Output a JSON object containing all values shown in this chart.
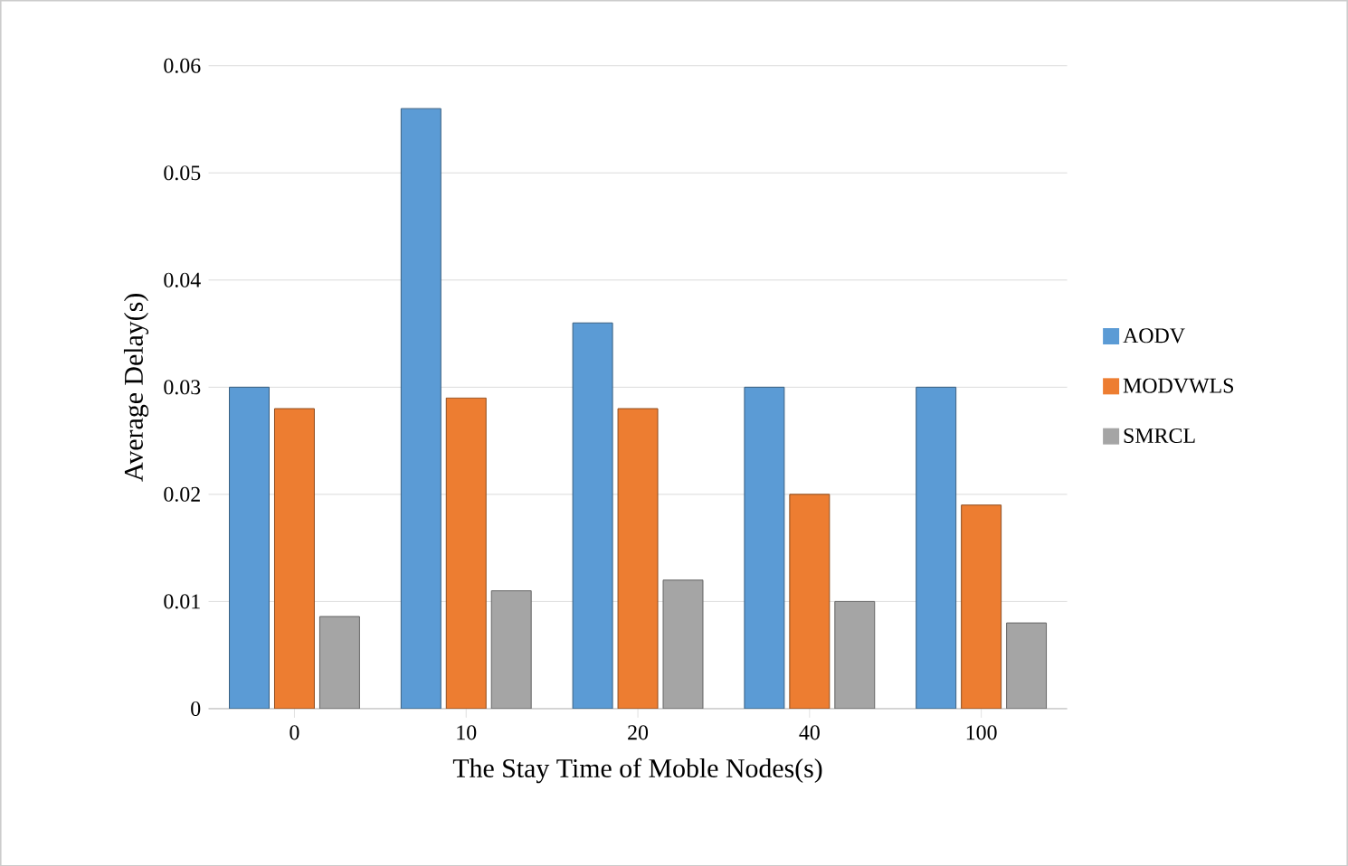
{
  "chart_data": {
    "type": "bar",
    "xlabel": "The Stay Time of Moble Nodes(s)",
    "ylabel": "Average Delay(s)",
    "categories": [
      "0",
      "10",
      "20",
      "40",
      "100"
    ],
    "series": [
      {
        "name": "AODV",
        "color": "#5b9bd5",
        "values": [
          0.03,
          0.056,
          0.036,
          0.03,
          0.03
        ]
      },
      {
        "name": "MODVWLS",
        "color": "#ed7d31",
        "values": [
          0.028,
          0.029,
          0.028,
          0.02,
          0.019
        ]
      },
      {
        "name": "SMRCL",
        "color": "#a5a5a5",
        "values": [
          0.0086,
          0.011,
          0.012,
          0.01,
          0.008
        ]
      }
    ],
    "ylim": [
      0,
      0.06
    ],
    "yticks": [
      0,
      0.01,
      0.02,
      0.03,
      0.04,
      0.05,
      0.06
    ],
    "grid": "y",
    "legend": "right"
  }
}
